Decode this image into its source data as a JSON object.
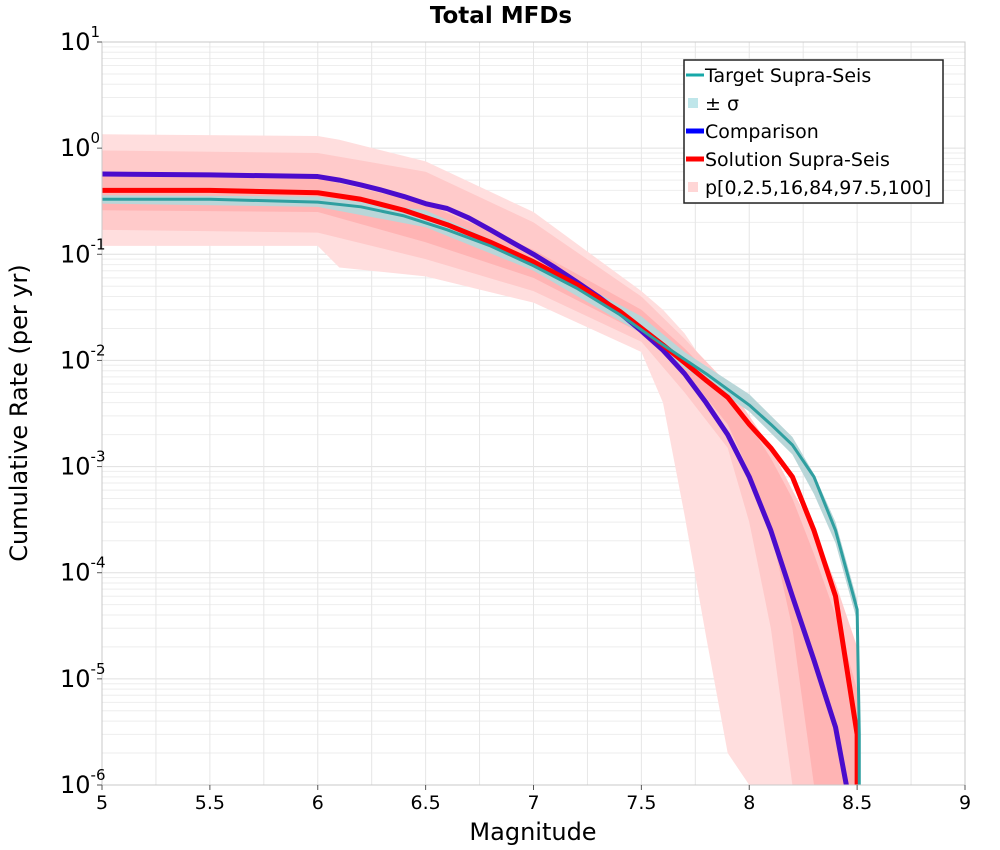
{
  "chart_data": {
    "type": "line",
    "title": "Total MFDs",
    "xlabel": "Magnitude",
    "ylabel": "Cumulative Rate (per yr)",
    "xlim": [
      5,
      9
    ],
    "ylim": [
      1e-06,
      10
    ],
    "yscale": "log",
    "grid": true,
    "legend_position": "top-right",
    "x_ticks": [
      "5",
      "5.5",
      "6",
      "6.5",
      "7",
      "7.5",
      "8",
      "8.5",
      "9"
    ],
    "y_ticks": [
      {
        "base": "10",
        "exp": "1"
      },
      {
        "base": "10",
        "exp": "0"
      },
      {
        "base": "10",
        "exp": "-1"
      },
      {
        "base": "10",
        "exp": "-2"
      },
      {
        "base": "10",
        "exp": "-3"
      },
      {
        "base": "10",
        "exp": "-4"
      },
      {
        "base": "10",
        "exp": "-5"
      },
      {
        "base": "10",
        "exp": "-6"
      }
    ],
    "legend": [
      {
        "label": "Target Supra-Seis",
        "color": "#17a8a8",
        "kind": "line"
      },
      {
        "label": "± σ",
        "color": "#bfe6ea",
        "kind": "box"
      },
      {
        "label": "Comparison",
        "color": "#0000ff",
        "kind": "thick-line"
      },
      {
        "label": "Solution Supra-Seis",
        "color": "#ff0000",
        "kind": "thick-line"
      },
      {
        "label": "p[0,2.5,16,84,97.5,100]",
        "color": "#ffd6d6",
        "kind": "box"
      }
    ],
    "bands": [
      {
        "name": "p0-p100",
        "color": "#ffdede",
        "x": [
          5.0,
          6.0,
          6.1,
          6.5,
          7.0,
          7.5,
          7.6,
          7.7,
          7.8,
          7.9,
          8.0,
          8.06,
          8.1,
          8.2,
          8.3,
          8.4,
          8.5
        ],
        "upper": [
          1.35,
          1.3,
          1.2,
          0.75,
          0.25,
          0.045,
          0.03,
          0.018,
          0.009,
          0.0045,
          0.0018,
          0.0012,
          0.0009,
          0.0004,
          0.00015,
          6e-05,
          1.2e-05
        ],
        "lower": [
          0.12,
          0.12,
          0.075,
          0.062,
          0.035,
          0.012,
          0.004,
          0.00035,
          2.5e-05,
          2e-06,
          1e-06,
          1e-06,
          1e-06,
          1e-06,
          1e-06,
          1e-06,
          1e-06
        ]
      },
      {
        "name": "p2.5-p97.5",
        "color": "#ffcaca",
        "x": [
          5.0,
          6.0,
          6.5,
          7.0,
          7.5,
          7.7,
          7.9,
          8.0,
          8.1,
          8.2,
          8.3,
          8.4,
          8.5
        ],
        "upper": [
          0.95,
          0.9,
          0.6,
          0.2,
          0.04,
          0.016,
          0.006,
          0.003,
          0.0015,
          0.0006,
          0.00025,
          8e-05,
          2e-05
        ],
        "lower": [
          0.17,
          0.16,
          0.09,
          0.045,
          0.015,
          0.005,
          0.0015,
          0.0003,
          3e-05,
          1e-06,
          1e-06,
          1e-06,
          1e-06
        ]
      },
      {
        "name": "p16-p84",
        "color": "#ffb4b4",
        "x": [
          5.0,
          6.0,
          6.5,
          7.0,
          7.5,
          7.7,
          7.9,
          8.0,
          8.1,
          8.2,
          8.3,
          8.4,
          8.5
        ],
        "upper": [
          0.55,
          0.52,
          0.3,
          0.11,
          0.03,
          0.013,
          0.005,
          0.0025,
          0.0012,
          0.0005,
          0.00015,
          4e-05,
          8e-06
        ],
        "lower": [
          0.26,
          0.25,
          0.13,
          0.06,
          0.018,
          0.008,
          0.0025,
          0.0009,
          0.00025,
          3e-05,
          1e-06,
          1e-06,
          1e-06
        ]
      },
      {
        "name": "± σ",
        "color": "#b9d6d8",
        "x": [
          5.0,
          6.0,
          6.5,
          7.0,
          7.5,
          7.7,
          8.0,
          8.2,
          8.3,
          8.4,
          8.5
        ],
        "upper": [
          0.36,
          0.35,
          0.26,
          0.09,
          0.026,
          0.012,
          0.0048,
          0.0019,
          0.00085,
          0.0003,
          5.5e-05
        ],
        "lower": [
          0.3,
          0.28,
          0.18,
          0.07,
          0.018,
          0.0085,
          0.0033,
          0.0013,
          0.00055,
          0.00019,
          3.5e-05
        ]
      }
    ],
    "series": [
      {
        "name": "Target Supra-Seis",
        "color": "#2f9fa0",
        "x": [
          5.0,
          5.5,
          6.0,
          6.2,
          6.4,
          6.6,
          6.8,
          7.0,
          7.2,
          7.4,
          7.6,
          7.8,
          8.0,
          8.1,
          8.2,
          8.3,
          8.4,
          8.5,
          8.51,
          8.51
        ],
        "y": [
          0.33,
          0.33,
          0.31,
          0.28,
          0.23,
          0.17,
          0.12,
          0.078,
          0.048,
          0.027,
          0.014,
          0.0075,
          0.0038,
          0.0025,
          0.0016,
          0.0008,
          0.00025,
          4.5e-05,
          3e-06,
          1e-06
        ]
      },
      {
        "name": "Comparison",
        "color": "#4b0ccc",
        "x": [
          5.0,
          5.5,
          6.0,
          6.1,
          6.2,
          6.3,
          6.4,
          6.5,
          6.6,
          6.7,
          6.8,
          6.9,
          7.0,
          7.1,
          7.2,
          7.3,
          7.4,
          7.5,
          7.6,
          7.7,
          7.8,
          7.9,
          8.0,
          8.1,
          8.2,
          8.3,
          8.4,
          8.45
        ],
        "y": [
          0.57,
          0.56,
          0.54,
          0.5,
          0.45,
          0.4,
          0.35,
          0.3,
          0.27,
          0.22,
          0.17,
          0.13,
          0.1,
          0.075,
          0.055,
          0.04,
          0.028,
          0.019,
          0.0125,
          0.0075,
          0.004,
          0.002,
          0.0008,
          0.00025,
          6e-05,
          1.5e-05,
          3.5e-06,
          1e-06
        ]
      },
      {
        "name": "Solution Supra-Seis",
        "color": "#ff0000",
        "x": [
          5.0,
          5.5,
          6.0,
          6.2,
          6.4,
          6.6,
          6.8,
          7.0,
          7.2,
          7.4,
          7.6,
          7.8,
          7.9,
          8.0,
          8.1,
          8.2,
          8.3,
          8.4,
          8.5,
          8.5
        ],
        "y": [
          0.4,
          0.4,
          0.38,
          0.33,
          0.26,
          0.19,
          0.13,
          0.085,
          0.052,
          0.029,
          0.014,
          0.0065,
          0.0045,
          0.0025,
          0.0015,
          0.0008,
          0.00025,
          6e-05,
          3e-06,
          1e-06
        ]
      }
    ]
  }
}
